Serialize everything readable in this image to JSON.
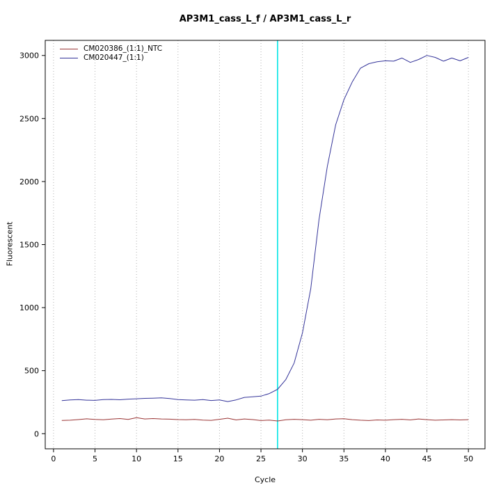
{
  "chart_data": {
    "type": "line",
    "title": "AP3M1_cass_L_f / AP3M1_cass_L_r",
    "xlabel": "Cycle",
    "ylabel": "Fluorescent",
    "xlim": [
      0,
      50
    ],
    "ylim": [
      0,
      3000
    ],
    "xticks": [
      0,
      5,
      10,
      15,
      20,
      25,
      30,
      35,
      40,
      45,
      50
    ],
    "yticks": [
      0,
      500,
      1000,
      1500,
      2000,
      2500,
      3000
    ],
    "grid": "vertical-dotted",
    "grid_color": "#b0b0b0",
    "threshold_x": 27,
    "threshold_color": "#00e5e5",
    "legend_position": "top-left",
    "x": [
      1,
      2,
      3,
      4,
      5,
      6,
      7,
      8,
      9,
      10,
      11,
      12,
      13,
      14,
      15,
      16,
      17,
      18,
      19,
      20,
      21,
      22,
      23,
      24,
      25,
      26,
      27,
      28,
      29,
      30,
      31,
      32,
      33,
      34,
      35,
      36,
      37,
      38,
      39,
      40,
      41,
      42,
      43,
      44,
      45,
      46,
      47,
      48,
      49,
      50
    ],
    "series": [
      {
        "name": "CM020386_(1:1)_NTC",
        "color": "#993333",
        "values": [
          105,
          107,
          112,
          118,
          113,
          110,
          116,
          120,
          113,
          127,
          117,
          120,
          117,
          115,
          112,
          110,
          113,
          108,
          106,
          114,
          123,
          109,
          117,
          112,
          104,
          108,
          101,
          110,
          114,
          111,
          107,
          114,
          110,
          117,
          119,
          111,
          107,
          104,
          109,
          107,
          111,
          114,
          109,
          117,
          111,
          107,
          109,
          111,
          109,
          111
        ]
      },
      {
        "name": "CM020447_(1:1)",
        "color": "#333399",
        "values": [
          262,
          268,
          270,
          266,
          264,
          270,
          272,
          269,
          274,
          277,
          280,
          282,
          284,
          279,
          271,
          268,
          266,
          271,
          263,
          268,
          255,
          268,
          288,
          293,
          298,
          318,
          352,
          430,
          560,
          800,
          1150,
          1700,
          2120,
          2450,
          2650,
          2790,
          2900,
          2935,
          2950,
          2958,
          2955,
          2980,
          2945,
          2968,
          3000,
          2985,
          2955,
          2980,
          2958,
          2985
        ]
      }
    ]
  }
}
